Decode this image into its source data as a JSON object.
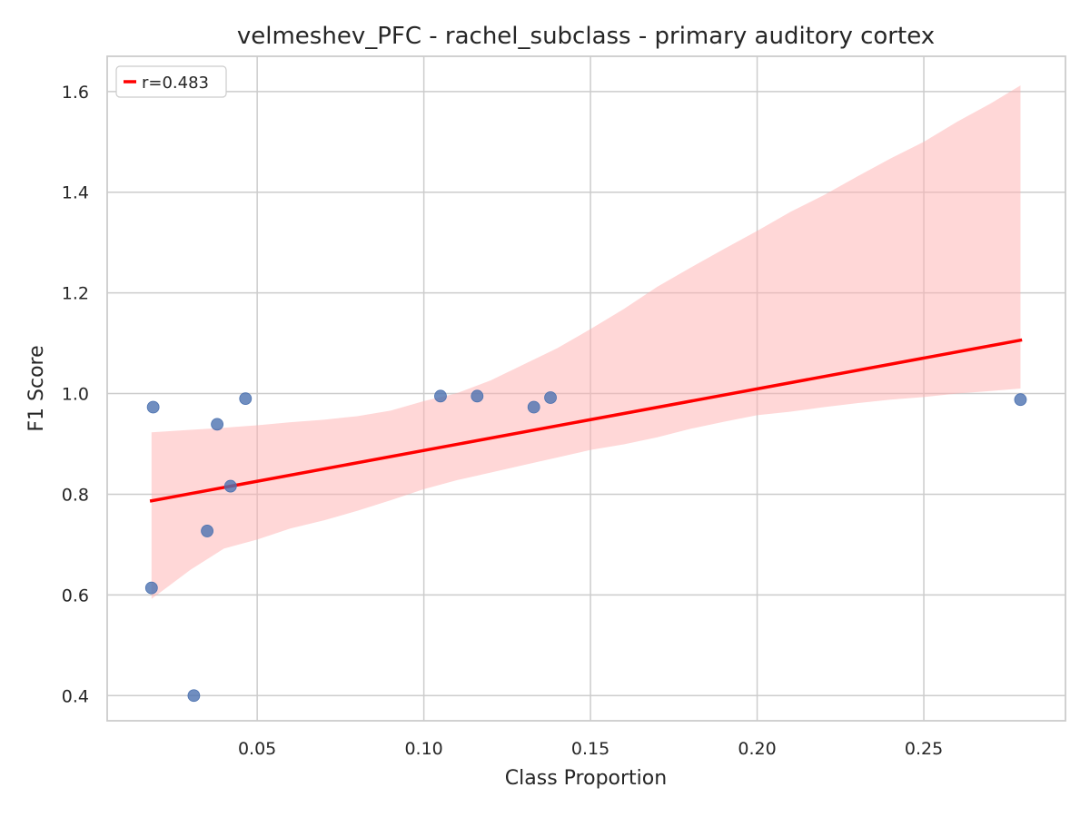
{
  "chart_data": {
    "type": "scatter",
    "title": "velmeshev_PFC - rachel_subclass - primary auditory cortex",
    "xlabel": "Class Proportion",
    "ylabel": "F1 Score",
    "xlim": [
      0.005,
      0.2925
    ],
    "ylim": [
      0.35,
      1.67
    ],
    "x_ticks": [
      0.05,
      0.1,
      0.15,
      0.2,
      0.25
    ],
    "x_tick_labels": [
      "0.05",
      "0.10",
      "0.15",
      "0.20",
      "0.25"
    ],
    "y_ticks": [
      0.4,
      0.6,
      0.8,
      1.0,
      1.2,
      1.4,
      1.6
    ],
    "y_tick_labels": [
      "0.4",
      "0.6",
      "0.8",
      "1.0",
      "1.2",
      "1.4",
      "1.6"
    ],
    "grid": true,
    "legend_position": "top-left",
    "points": [
      {
        "x": 0.0188,
        "y": 0.973
      },
      {
        "x": 0.0183,
        "y": 0.614
      },
      {
        "x": 0.031,
        "y": 0.4
      },
      {
        "x": 0.035,
        "y": 0.727
      },
      {
        "x": 0.038,
        "y": 0.939
      },
      {
        "x": 0.042,
        "y": 0.816
      },
      {
        "x": 0.0465,
        "y": 0.99
      },
      {
        "x": 0.105,
        "y": 0.995
      },
      {
        "x": 0.116,
        "y": 0.995
      },
      {
        "x": 0.133,
        "y": 0.973
      },
      {
        "x": 0.138,
        "y": 0.992
      },
      {
        "x": 0.279,
        "y": 0.988
      }
    ],
    "regression": {
      "label": "r=0.483",
      "x": [
        0.0183,
        0.279
      ],
      "y": [
        0.787,
        1.106
      ]
    },
    "confidence_band": {
      "x": [
        0.0183,
        0.03,
        0.04,
        0.05,
        0.06,
        0.07,
        0.08,
        0.09,
        0.1,
        0.11,
        0.12,
        0.13,
        0.14,
        0.15,
        0.16,
        0.17,
        0.18,
        0.19,
        0.2,
        0.21,
        0.22,
        0.23,
        0.24,
        0.25,
        0.26,
        0.27,
        0.279
      ],
      "upper": [
        0.923,
        0.928,
        0.932,
        0.937,
        0.943,
        0.948,
        0.955,
        0.966,
        0.985,
        1.001,
        1.026,
        1.058,
        1.09,
        1.128,
        1.168,
        1.212,
        1.25,
        1.287,
        1.323,
        1.361,
        1.394,
        1.431,
        1.467,
        1.5,
        1.54,
        1.576,
        1.612
      ],
      "lower": [
        0.592,
        0.65,
        0.692,
        0.71,
        0.732,
        0.748,
        0.767,
        0.788,
        0.81,
        0.828,
        0.843,
        0.858,
        0.873,
        0.888,
        0.899,
        0.913,
        0.93,
        0.944,
        0.957,
        0.964,
        0.973,
        0.981,
        0.988,
        0.993,
        1.0,
        1.005,
        1.01
      ]
    },
    "colors": {
      "points": "#4c72b0",
      "regression_line": "#ff0000",
      "confidence_band": "#ffb0b0",
      "grid": "#cccccc",
      "axes": "#cccccc"
    }
  }
}
